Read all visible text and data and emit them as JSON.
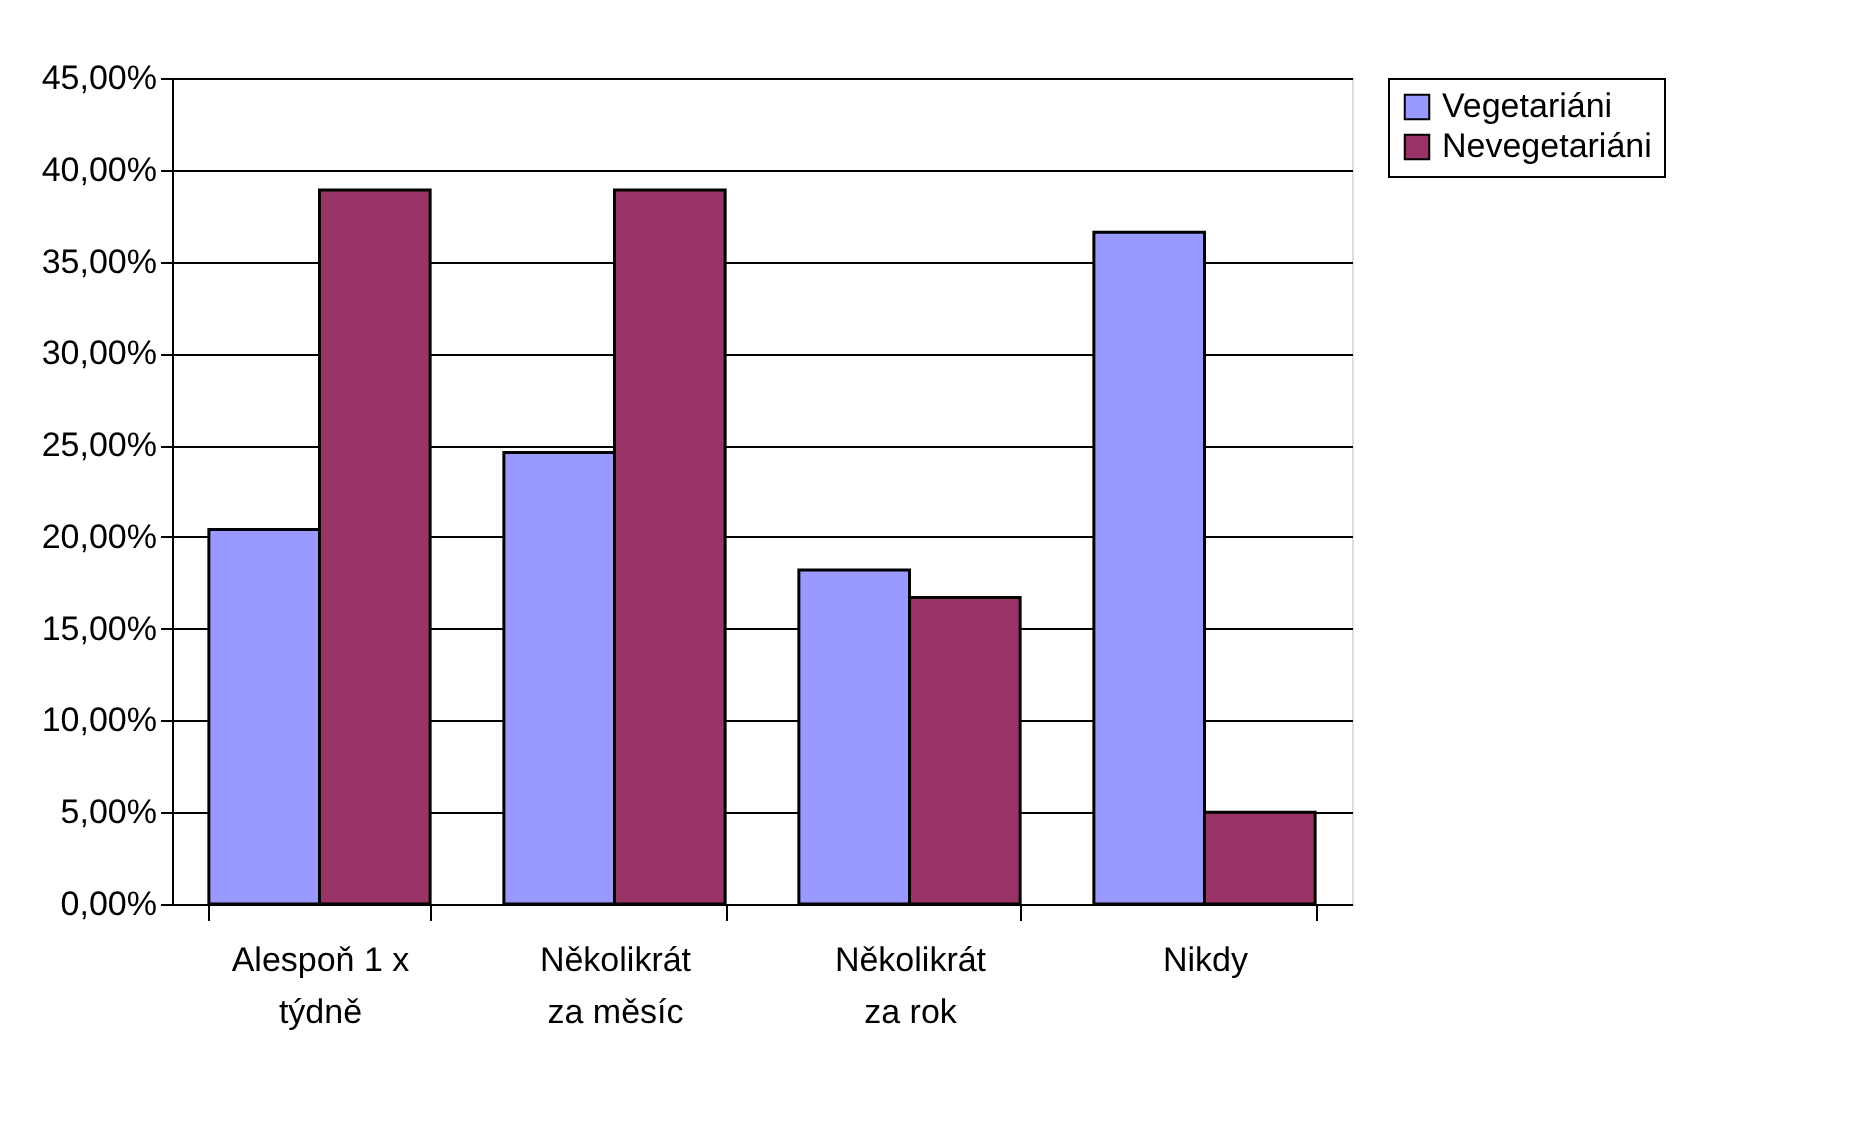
{
  "chart_data": {
    "type": "bar",
    "categories": [
      "Alespoň 1 x týdně",
      "Několikrát za měsíc",
      "Několikrát za rok",
      "Nikdy"
    ],
    "series": [
      {
        "name": "Vegetariáni",
        "color": "#9999ff",
        "values": [
          20.4,
          24.6,
          18.2,
          36.6
        ]
      },
      {
        "name": "Nevegetariáni",
        "color": "#993366",
        "values": [
          38.9,
          38.9,
          16.7,
          5.0
        ]
      }
    ],
    "ylim": [
      0,
      45
    ],
    "yticks": [
      {
        "value": 0,
        "label": "0,00%"
      },
      {
        "value": 5,
        "label": "5,00%"
      },
      {
        "value": 10,
        "label": "10,00%"
      },
      {
        "value": 15,
        "label": "15,00%"
      },
      {
        "value": 20,
        "label": "20,00%"
      },
      {
        "value": 25,
        "label": "25,00%"
      },
      {
        "value": 30,
        "label": "30,00%"
      },
      {
        "value": 35,
        "label": "35,00%"
      },
      {
        "value": 40,
        "label": "40,00%"
      },
      {
        "value": 45,
        "label": "45,00%"
      }
    ],
    "grid": "y",
    "legend": "right"
  }
}
